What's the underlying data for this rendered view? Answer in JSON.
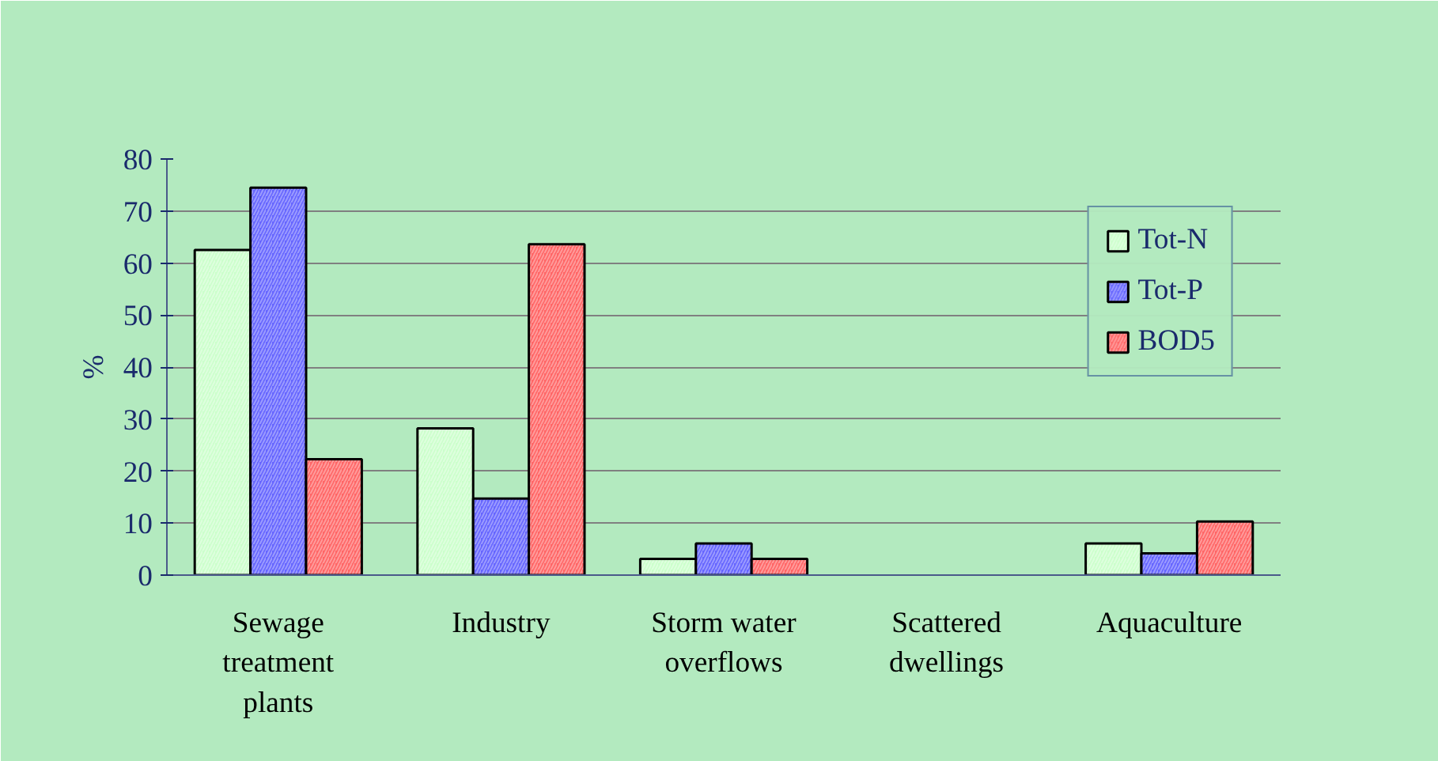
{
  "chart_data": {
    "type": "bar",
    "ylabel": "%",
    "categories": [
      "Sewage treatment plants",
      "Industry",
      "Storm water overflows",
      "Scattered dwellings",
      "Aquaculture"
    ],
    "series": [
      {
        "name": "Tot-N",
        "color": "#ccffcc",
        "values": [
          62.5,
          28.2,
          3.1,
          null,
          6.1
        ]
      },
      {
        "name": "Tot-P",
        "color": "#6666ff",
        "values": [
          74.5,
          14.7,
          6.1,
          null,
          4.2
        ]
      },
      {
        "name": "BOD5",
        "color": "#ff6666",
        "values": [
          22.3,
          63.6,
          3.1,
          null,
          10.3
        ]
      }
    ],
    "ylim": [
      0,
      80
    ],
    "yticks": [
      0,
      10,
      20,
      30,
      40,
      50,
      60,
      70,
      80
    ],
    "grid": "y",
    "legend": "top right"
  }
}
